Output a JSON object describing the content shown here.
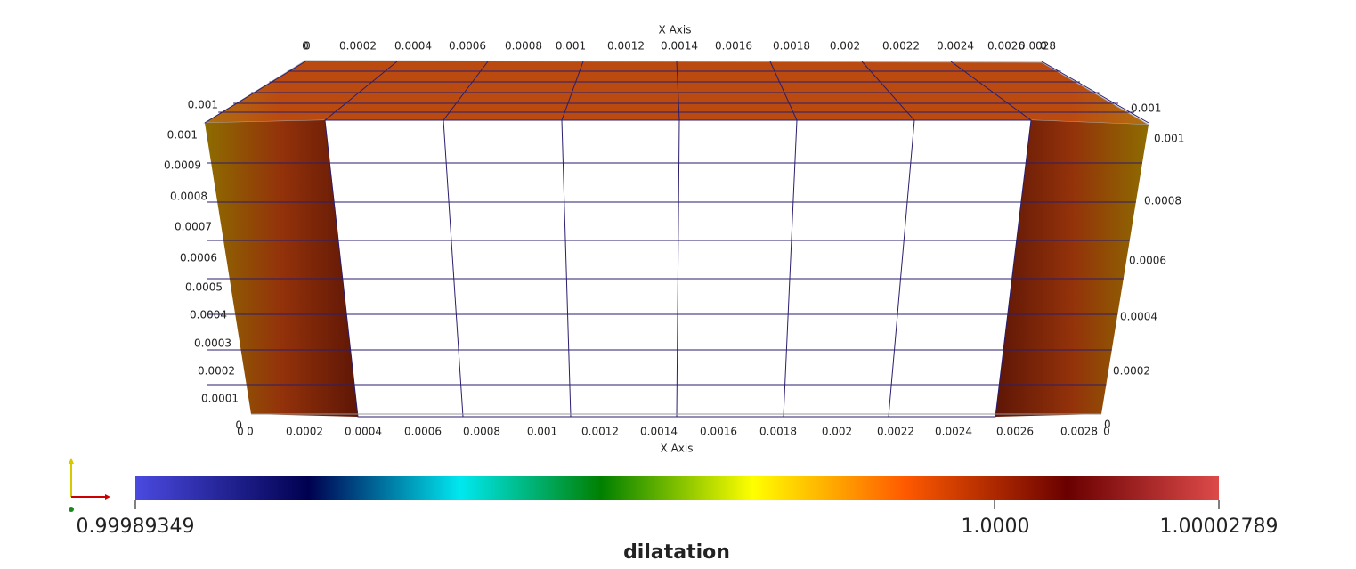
{
  "top_axis": {
    "title": "X Axis",
    "ticks": [
      "0",
      "0",
      "0.0002",
      "0.0004",
      "0.0006",
      "0.0008",
      "0.001",
      "0.0012",
      "0.0014",
      "0.0016",
      "0.0018",
      "0.002",
      "0.0022",
      "0.0024",
      "0.0026",
      "0.0028",
      "0"
    ]
  },
  "bottom_axis": {
    "title": "X Axis",
    "ticks": [
      "0",
      "0",
      "0.0002",
      "0.0004",
      "0.0006",
      "0.0008",
      "0.001",
      "0.0012",
      "0.0014",
      "0.0016",
      "0.0018",
      "0.002",
      "0.0022",
      "0.0024",
      "0.0026",
      "0.0028",
      "0"
    ]
  },
  "left_axis": {
    "ticks": [
      "0.001",
      "0.001",
      "0.0009",
      "0.0008",
      "0.0007",
      "0.0006",
      "0.0005",
      "0.0004",
      "0.0003",
      "0.0002",
      "0.0001",
      "0"
    ]
  },
  "right_axis": {
    "ticks": [
      "0.001",
      "0.001",
      "0.0008",
      "0.0006",
      "0.0004",
      "0.0002",
      "0"
    ]
  },
  "color_bar": {
    "title": "dilatation",
    "labels": [
      "0.99989349",
      "1.0000",
      "1.00002789"
    ]
  }
}
